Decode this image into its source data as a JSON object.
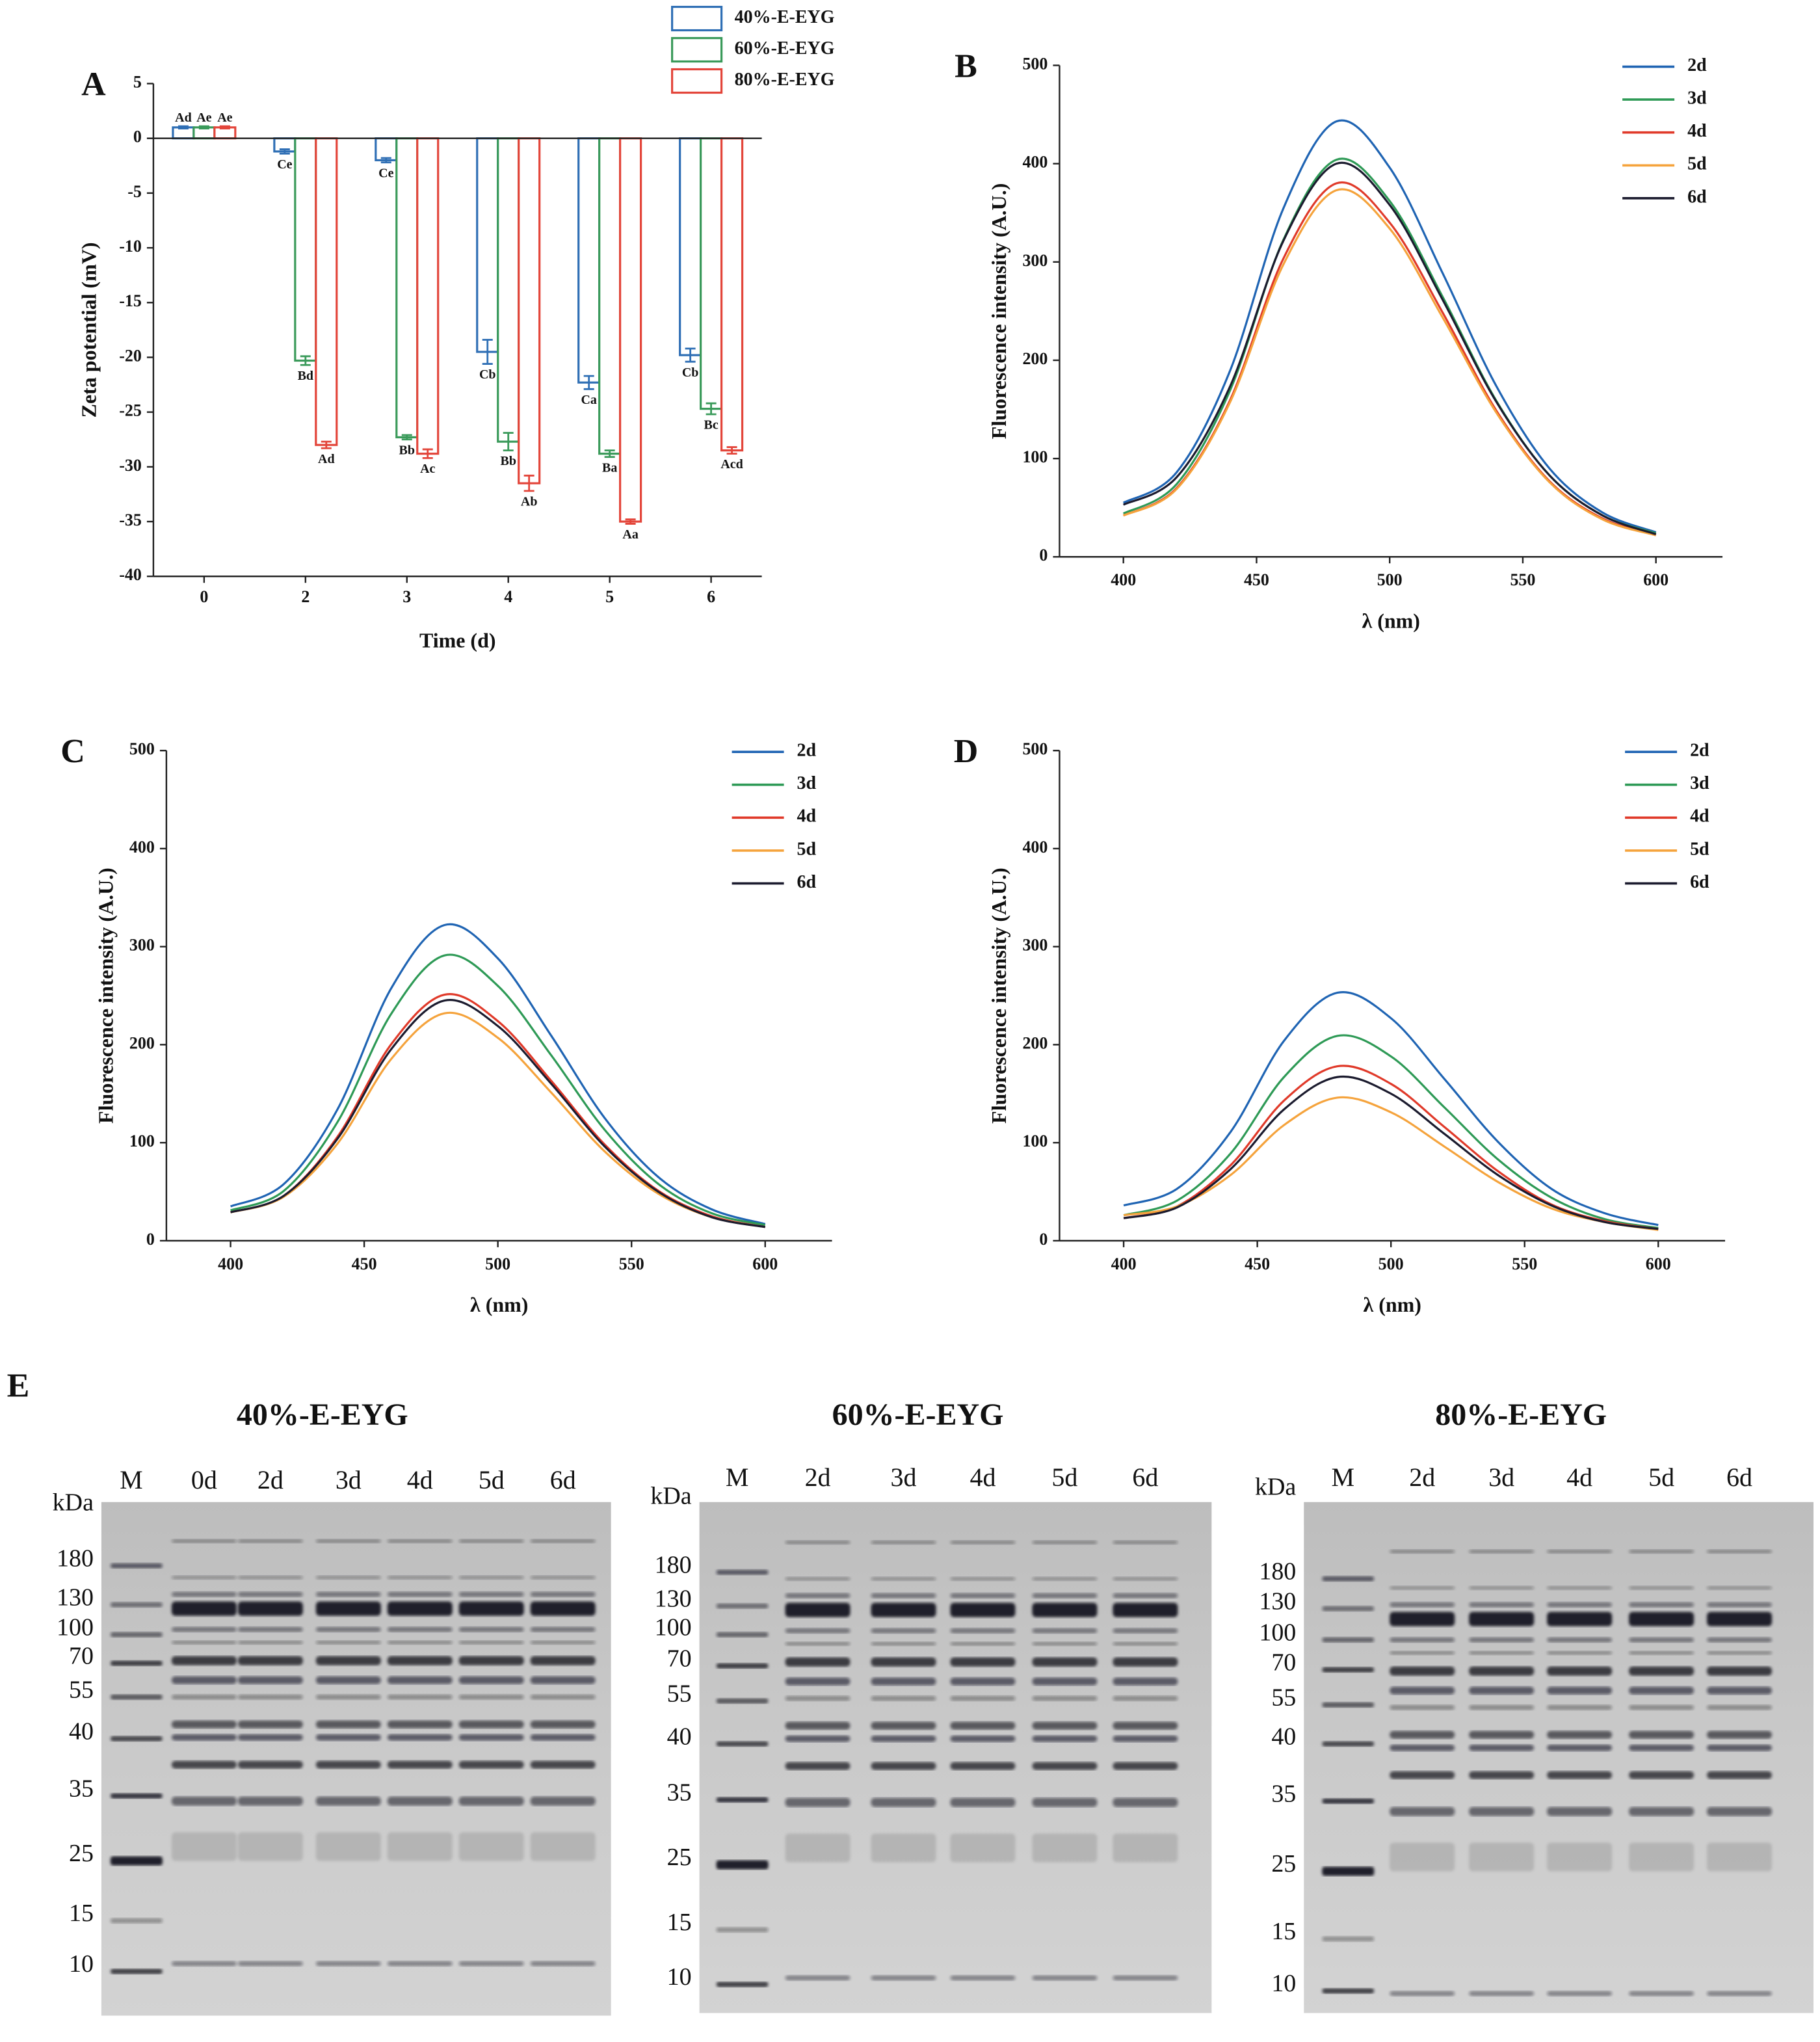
{
  "chart_data": [
    {
      "type": "bar",
      "panel": "A",
      "ylabel": "Zeta potential (mV)",
      "xlabel": "Time (d)",
      "categories": [
        "0",
        "2",
        "3",
        "4",
        "5",
        "6"
      ],
      "ylim": [
        -40,
        5
      ],
      "yticks": [
        -40,
        -35,
        -30,
        -25,
        -20,
        -15,
        -10,
        -5,
        0,
        5
      ],
      "legend": "top",
      "series": [
        {
          "name": "40%-E-EYG",
          "color": "#2f6fb5",
          "values": [
            1,
            -1.2,
            -2,
            -19.5,
            -22.3,
            -19.8
          ],
          "errors": [
            0.1,
            0.2,
            0.2,
            1.1,
            0.6,
            0.6
          ],
          "letters": [
            "Ad",
            "Ce",
            "Ce",
            "Cb",
            "Ca",
            "Cb"
          ]
        },
        {
          "name": "60%-E-EYG",
          "color": "#3a9a5a",
          "values": [
            1,
            -20.3,
            -27.3,
            -27.7,
            -28.8,
            -24.7
          ],
          "errors": [
            0.1,
            0.4,
            0.2,
            0.8,
            0.3,
            0.5
          ],
          "letters": [
            "Ae",
            "Bd",
            "Bb",
            "Bb",
            "Ba",
            "Bc"
          ]
        },
        {
          "name": "80%-E-EYG",
          "color": "#e3453a",
          "values": [
            1,
            -28,
            -28.8,
            -31.5,
            -35,
            -28.5
          ],
          "errors": [
            0.1,
            0.3,
            0.4,
            0.7,
            0.2,
            0.3
          ],
          "letters": [
            "Ae",
            "Ad",
            "Ac",
            "Ab",
            "Aa",
            "Acd"
          ]
        }
      ]
    },
    {
      "type": "line",
      "panel": "B",
      "ylabel": "Fluorescence intensity (A.U.)",
      "xlabel": "λ (nm)",
      "x": [
        400,
        420,
        440,
        460,
        480,
        500,
        520,
        540,
        560,
        580,
        600
      ],
      "xlim": [
        376,
        625
      ],
      "xticks": [
        400,
        450,
        500,
        550,
        600
      ],
      "ylim": [
        0,
        500
      ],
      "yticks": [
        0,
        100,
        200,
        300,
        400,
        500
      ],
      "legend": "upper right",
      "series": [
        {
          "name": "2d",
          "color": "#1f64b3",
          "values": [
            55,
            86,
            189,
            354,
            443,
            396,
            288,
            174,
            90,
            45,
            25
          ]
        },
        {
          "name": "3d",
          "color": "#2e9a56",
          "values": [
            44,
            74,
            169,
            322,
            404,
            362,
            264,
            159,
            83,
            42,
            24
          ]
        },
        {
          "name": "4d",
          "color": "#e03a2a",
          "values": [
            42,
            70,
            159,
            303,
            380,
            340,
            248,
            149,
            77,
            39,
            22
          ]
        },
        {
          "name": "5d",
          "color": "#f5a33c",
          "values": [
            42,
            69,
            157,
            297,
            373,
            334,
            243,
            147,
            76,
            38,
            22
          ]
        },
        {
          "name": "6d",
          "color": "#1b1b2e",
          "values": [
            53,
            81,
            173,
            321,
            400,
            358,
            261,
            158,
            83,
            42,
            23
          ]
        }
      ]
    },
    {
      "type": "line",
      "panel": "C",
      "ylabel": "Fluorescence intensity (A.U.)",
      "xlabel": "λ (nm)",
      "x": [
        400,
        420,
        440,
        460,
        480,
        500,
        520,
        540,
        560,
        580,
        600
      ],
      "xlim": [
        376,
        625
      ],
      "xticks": [
        400,
        450,
        500,
        550,
        600
      ],
      "ylim": [
        0,
        500
      ],
      "yticks": [
        0,
        100,
        200,
        300,
        400,
        500
      ],
      "legend": "upper right",
      "series": [
        {
          "name": "2d",
          "color": "#1f64b3",
          "values": [
            35,
            58,
            134,
            257,
            322,
            288,
            209,
            125,
            65,
            32,
            17
          ]
        },
        {
          "name": "3d",
          "color": "#2e9a56",
          "values": [
            31,
            51,
            121,
            231,
            291,
            260,
            189,
            113,
            58,
            28,
            16
          ]
        },
        {
          "name": "4d",
          "color": "#e03a2a",
          "values": [
            29,
            46,
            106,
            200,
            251,
            224,
            163,
            98,
            51,
            25,
            14
          ]
        },
        {
          "name": "5d",
          "color": "#f5a33c",
          "values": [
            29,
            45,
            99,
            185,
            232,
            207,
            151,
            91,
            48,
            24,
            14
          ]
        },
        {
          "name": "6d",
          "color": "#1b1b2e",
          "values": [
            29,
            46,
            104,
            195,
            245,
            219,
            160,
            96,
            50,
            24,
            14
          ]
        }
      ]
    },
    {
      "type": "line",
      "panel": "D",
      "ylabel": "Fluorescence intensity (A.U.)",
      "xlabel": "λ (nm)",
      "x": [
        400,
        420,
        440,
        460,
        480,
        500,
        520,
        540,
        560,
        580,
        600
      ],
      "xlim": [
        376,
        625
      ],
      "xticks": [
        400,
        450,
        500,
        550,
        600
      ],
      "ylim": [
        0,
        500
      ],
      "yticks": [
        0,
        100,
        200,
        300,
        400,
        500
      ],
      "legend": "upper right",
      "series": [
        {
          "name": "2d",
          "color": "#1f64b3",
          "values": [
            36,
            53,
            111,
            204,
            253,
            227,
            165,
            101,
            53,
            28,
            16
          ]
        },
        {
          "name": "3d",
          "color": "#2e9a56",
          "values": [
            26,
            41,
            89,
            167,
            209,
            188,
            136,
            83,
            44,
            22,
            13
          ]
        },
        {
          "name": "4d",
          "color": "#e03a2a",
          "values": [
            23,
            35,
            77,
            143,
            178,
            160,
            116,
            71,
            37,
            20,
            12
          ]
        },
        {
          "name": "5d",
          "color": "#f5a33c",
          "values": [
            26,
            35,
            67,
            118,
            146,
            131,
            96,
            60,
            33,
            19,
            11
          ]
        },
        {
          "name": "6d",
          "color": "#1b1b2e",
          "values": [
            23,
            34,
            73,
            134,
            167,
            150,
            109,
            67,
            36,
            19,
            12
          ]
        }
      ]
    }
  ],
  "gel_panel": {
    "label": "E",
    "gels": [
      {
        "title": "40%-E-EYG",
        "unit": "kDa",
        "lanes": [
          "M",
          "0d",
          "2d",
          "3d",
          "4d",
          "5d",
          "6d"
        ],
        "markers": [
          180,
          130,
          100,
          70,
          55,
          40,
          35,
          25,
          15,
          10
        ]
      },
      {
        "title": "60%-E-EYG",
        "unit": "kDa",
        "lanes": [
          "M",
          "2d",
          "3d",
          "4d",
          "5d",
          "6d"
        ],
        "markers": [
          180,
          130,
          100,
          70,
          55,
          40,
          35,
          25,
          15,
          10
        ]
      },
      {
        "title": "80%-E-EYG",
        "unit": "kDa",
        "lanes": [
          "M",
          "2d",
          "3d",
          "4d",
          "5d",
          "6d"
        ],
        "markers": [
          180,
          130,
          100,
          70,
          55,
          40,
          35,
          25,
          15,
          10
        ]
      }
    ]
  }
}
